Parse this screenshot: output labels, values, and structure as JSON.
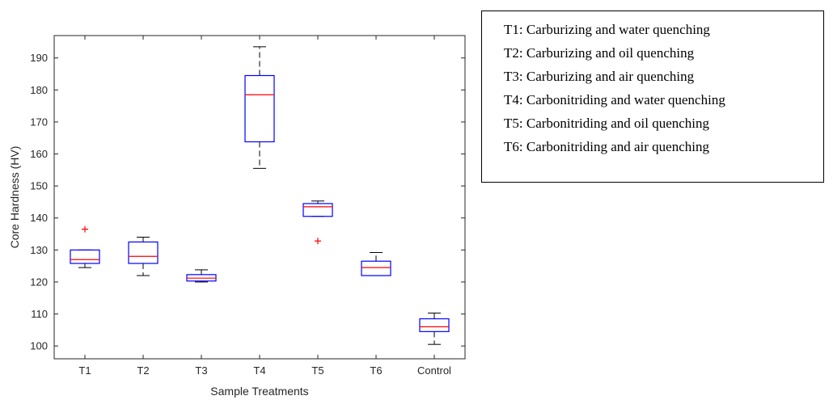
{
  "chart_data": {
    "type": "box",
    "xlabel": "Sample Treatments",
    "ylabel": "Core Hardness (HV)",
    "ylim": [
      96,
      197
    ],
    "yticks": [
      100,
      110,
      120,
      130,
      140,
      150,
      160,
      170,
      180,
      190
    ],
    "categories": [
      "T1",
      "T2",
      "T3",
      "T4",
      "T5",
      "T6",
      "Control"
    ],
    "boxes": [
      {
        "category": "T1",
        "whisker_low": 124.5,
        "q1": 125.8,
        "median": 127.0,
        "q3": 130.0,
        "whisker_high": 130.0,
        "outliers": [
          136.5
        ]
      },
      {
        "category": "T2",
        "whisker_low": 122.0,
        "q1": 125.8,
        "median": 128.0,
        "q3": 132.5,
        "whisker_high": 134.0,
        "outliers": []
      },
      {
        "category": "T3",
        "whisker_low": 120.0,
        "q1": 120.3,
        "median": 121.2,
        "q3": 122.3,
        "whisker_high": 123.8,
        "outliers": []
      },
      {
        "category": "T4",
        "whisker_low": 155.5,
        "q1": 163.8,
        "median": 178.5,
        "q3": 184.5,
        "whisker_high": 193.5,
        "outliers": []
      },
      {
        "category": "T5",
        "whisker_low": 140.5,
        "q1": 140.5,
        "median": 143.5,
        "q3": 144.5,
        "whisker_high": 145.3,
        "outliers": [
          132.8
        ]
      },
      {
        "category": "T6",
        "whisker_low": 122.0,
        "q1": 122.0,
        "median": 124.5,
        "q3": 126.5,
        "whisker_high": 129.2,
        "outliers": []
      },
      {
        "category": "Control",
        "whisker_low": 100.5,
        "q1": 104.5,
        "median": 106.0,
        "q3": 108.5,
        "whisker_high": 110.3,
        "outliers": []
      }
    ],
    "grid": false,
    "colors": {
      "box": "#0000ff",
      "median": "#ff0000",
      "whisker": "#000000",
      "outlier": "#ff0000"
    }
  },
  "legend": {
    "items": [
      "T1: Carburizing and water quenching",
      "T2: Carburizing and oil quenching",
      "T3: Carburizing and air quenching",
      "T4: Carbonitriding and water quenching",
      "T5: Carbonitriding and oil quenching",
      "T6: Carbonitriding and air quenching"
    ]
  }
}
